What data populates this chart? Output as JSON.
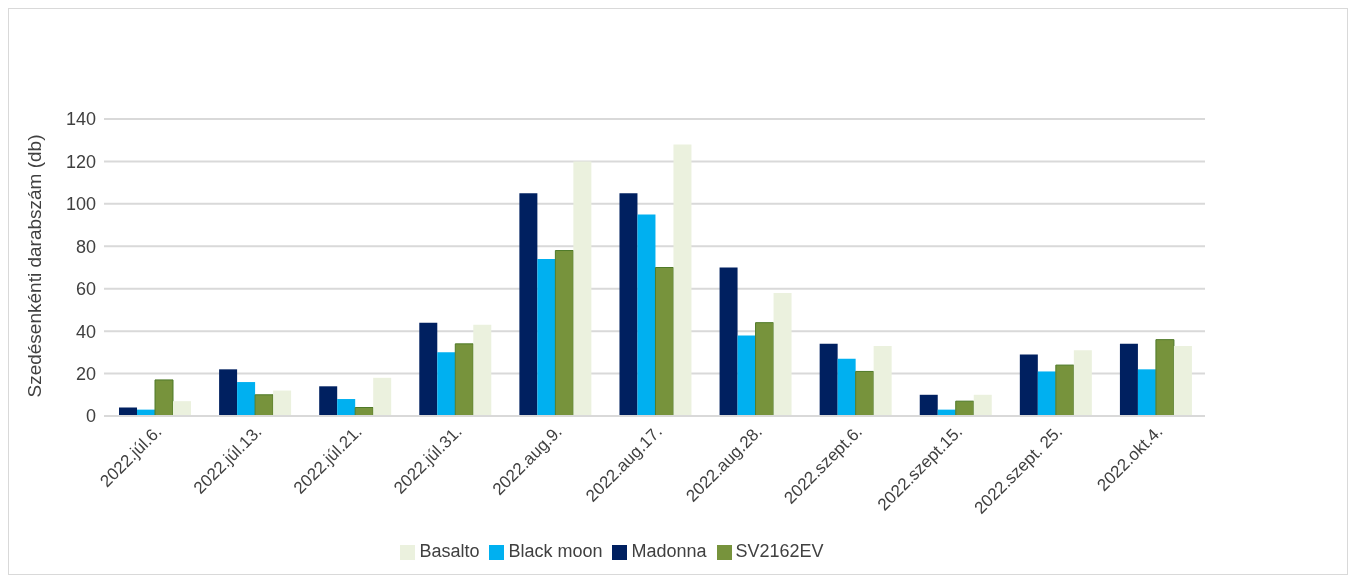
{
  "chart_data": {
    "type": "bar",
    "ylabel": "Szedésenkénti darabszám (db)",
    "categories": [
      "2022.júl.6.",
      "2022.júl.13.",
      "2022.júl.21.",
      "2022.júl.31.",
      "2022.aug.9.",
      "2022.aug.17.",
      "2022.aug.28.",
      "2022.szept.6.",
      "2022.szept.15.",
      "2022.szept. 25.",
      "2022.okt.4."
    ],
    "series": [
      {
        "name": "Madonna",
        "color": "#002060",
        "values": [
          4,
          22,
          14,
          44,
          105,
          105,
          70,
          34,
          10,
          29,
          34
        ]
      },
      {
        "name": "Black moon",
        "color": "#00b0f0",
        "values": [
          3,
          16,
          8,
          30,
          74,
          95,
          38,
          27,
          3,
          21,
          22
        ]
      },
      {
        "name": "SV2162EV",
        "color": "#77933c",
        "values": [
          17,
          10,
          4,
          34,
          78,
          70,
          44,
          21,
          7,
          24,
          36
        ]
      },
      {
        "name": "Basalto",
        "color": "#ebf1de",
        "values": [
          7,
          12,
          18,
          43,
          120,
          128,
          58,
          33,
          10,
          31,
          33
        ]
      }
    ],
    "ylim": [
      0,
      140
    ],
    "yticks": [
      0,
      20,
      40,
      60,
      80,
      100,
      120,
      140
    ],
    "grid": "y",
    "legend": "bottom"
  }
}
